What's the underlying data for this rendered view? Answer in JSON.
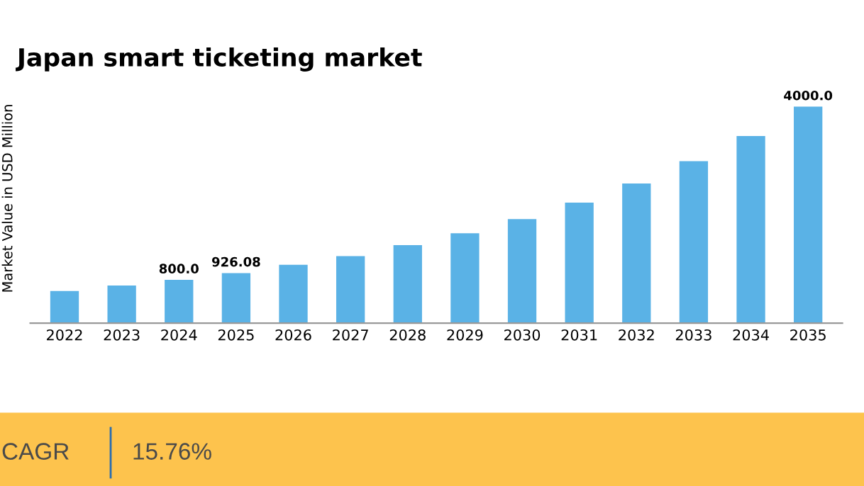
{
  "chart_data": {
    "type": "bar",
    "title": "Japan smart ticketing market",
    "ylabel": "Market Value in USD Million",
    "categories": [
      "2022",
      "2023",
      "2024",
      "2025",
      "2026",
      "2027",
      "2028",
      "2029",
      "2030",
      "2031",
      "2032",
      "2033",
      "2034",
      "2035"
    ],
    "values": [
      595,
      695,
      800,
      926.08,
      1078,
      1240,
      1441,
      1663,
      1925,
      2227,
      2580,
      2993,
      3457,
      4000.0
    ],
    "value_labels": [
      null,
      null,
      "800.0",
      "926.08",
      null,
      null,
      null,
      null,
      null,
      null,
      null,
      null,
      null,
      "4000.0"
    ],
    "color": "#5ab2e6",
    "tick_labels": "x",
    "grid": false,
    "legend": false,
    "annotations": [
      "CAGR",
      "15.76%"
    ]
  }
}
